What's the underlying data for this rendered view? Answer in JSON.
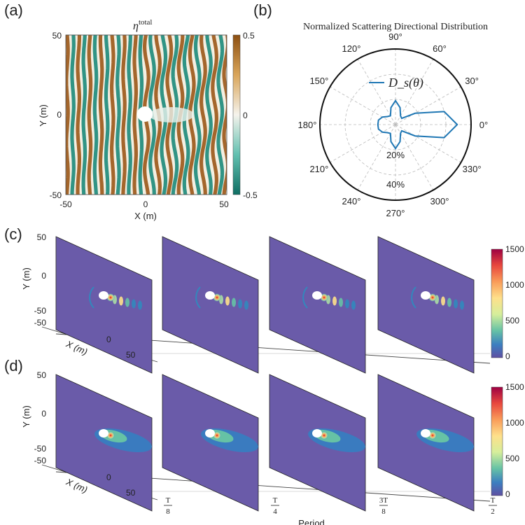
{
  "panels": {
    "a": {
      "label": "(a)",
      "title_base": "η",
      "title_sup": "total",
      "xlabel": "X (m)",
      "ylabel": "Y (m)",
      "xticks": [
        "-50",
        "0",
        "50"
      ],
      "yticks": [
        "50",
        "0",
        "-50"
      ],
      "colorbar_ticks": [
        "0.5",
        "0",
        "-0.5"
      ],
      "colors": {
        "pos": "#9c5a1c",
        "mid": "#f4f1e6",
        "neg": "#1e8a7c"
      }
    },
    "b": {
      "label": "(b)",
      "title": "Normalized Scattering Directional Distribution",
      "legend": "D_s(θ)",
      "angle_labels": [
        "0°",
        "30°",
        "60°",
        "90°",
        "120°",
        "150°",
        "180°",
        "210°",
        "240°",
        "270°",
        "300°",
        "330°"
      ],
      "radial_labels": [
        "20%",
        "40%"
      ],
      "line_color": "#1f77b4"
    },
    "c": {
      "label": "(c)",
      "ylabel": "Y (m)",
      "xlabel": "X (m)",
      "yticks": [
        "50",
        "0",
        "-50",
        "-50"
      ],
      "xticks": [
        "0",
        "50"
      ],
      "colorbar_ticks": [
        "1500",
        "1000",
        "500",
        "0"
      ]
    },
    "d": {
      "label": "(d)",
      "ylabel": "Y (m)",
      "xlabel": "X (m)",
      "yticks": [
        "50",
        "0",
        "-50",
        "-50"
      ],
      "xticks": [
        "0",
        "50"
      ],
      "colorbar_ticks": [
        "1500",
        "1000",
        "500",
        "0"
      ],
      "period_ticks": [
        {
          "num": "T",
          "den": "8"
        },
        {
          "num": "T",
          "den": "4"
        },
        {
          "num": "3T",
          "den": "8"
        },
        {
          "num": "T",
          "den": "2"
        }
      ],
      "period_label": "Period"
    }
  },
  "chart_data": [
    {
      "type": "heatmap",
      "title": "η^total",
      "xlabel": "X (m)",
      "ylabel": "Y (m)",
      "xlim": [
        -50,
        50
      ],
      "ylim": [
        -50,
        50
      ],
      "clim": [
        -0.5,
        0.5
      ]
    },
    {
      "type": "line",
      "title": "Normalized Scattering Directional Distribution",
      "series": [
        {
          "name": "D_s(θ)",
          "theta_deg": [
            0,
            15,
            30,
            45,
            60,
            75,
            90,
            105,
            120,
            135,
            150,
            165,
            180,
            195,
            210,
            225,
            240,
            255,
            270,
            285,
            300,
            315,
            330,
            345,
            360
          ],
          "r_percent": [
            49,
            40,
            18,
            7,
            8,
            14,
            19,
            14,
            8,
            9,
            12,
            14,
            14,
            14,
            12,
            9,
            8,
            14,
            19,
            14,
            8,
            7,
            18,
            40,
            49
          ]
        }
      ],
      "rlim": [
        0,
        60
      ]
    }
  ]
}
